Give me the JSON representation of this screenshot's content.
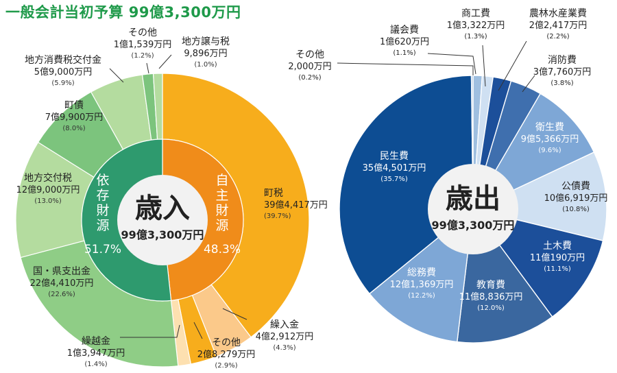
{
  "title": "一般会計当初予算 99億3,300万円",
  "chart_data": [
    {
      "type": "pie",
      "title": "歳入",
      "total": "99億3,300万円",
      "inner_ring": [
        {
          "name": "依存財源",
          "pct": "51.7%",
          "value": 51.7,
          "color": "#2e9a6e"
        },
        {
          "name": "自主財源",
          "pct": "48.3%",
          "value": 48.3,
          "color": "#f08c1a"
        }
      ],
      "slices": [
        {
          "name": "町税",
          "amount": "39億4,417万円",
          "pct": "(39.7%)",
          "value": 39.7,
          "color": "#f7ad1c"
        },
        {
          "name": "繰入金",
          "amount": "4億2,912万円",
          "pct": "(4.3%)",
          "value": 4.3,
          "color": "#fbc98a"
        },
        {
          "name": "その他",
          "amount": "2億8,279万円",
          "pct": "(2.9%)",
          "value": 2.9,
          "color": "#f7ad1c"
        },
        {
          "name": "繰越金",
          "amount": "1億3,947万円",
          "pct": "(1.4%)",
          "value": 1.4,
          "color": "#fde0b0"
        },
        {
          "name": "国・県支出金",
          "amount": "22億4,410万円",
          "pct": "(22.6%)",
          "value": 22.6,
          "color": "#8fcd86"
        },
        {
          "name": "地方交付税",
          "amount": "12億9,000万円",
          "pct": "(13.0%)",
          "value": 13.0,
          "color": "#b4dc9f"
        },
        {
          "name": "町債",
          "amount": "7億9,900万円",
          "pct": "(8.0%)",
          "value": 8.0,
          "color": "#7cc47d"
        },
        {
          "name": "地方消費税交付金",
          "amount": "5億9,000万円",
          "pct": "(5.9%)",
          "value": 5.9,
          "color": "#b4dc9f"
        },
        {
          "name": "その他",
          "amount": "1億1,539万円",
          "pct": "(1.2%)",
          "value": 1.2,
          "color": "#7cc47d"
        },
        {
          "name": "地方譲与税",
          "amount": "9,896万円",
          "pct": "(1.0%)",
          "value": 1.0,
          "color": "#b4dc9f"
        }
      ]
    },
    {
      "type": "pie",
      "title": "歳出",
      "total": "99億3,300万円",
      "slices": [
        {
          "name": "議会費",
          "amount": "1億620万円",
          "pct": "(1.1%)",
          "value": 1.1,
          "color": "#9fbfe0"
        },
        {
          "name": "商工費",
          "amount": "1億3,322万円",
          "pct": "(1.3%)",
          "value": 1.3,
          "color": "#cfe0f2"
        },
        {
          "name": "農林水産業費",
          "amount": "2億2,417万円",
          "pct": "(2.2%)",
          "value": 2.2,
          "color": "#1c4f9a"
        },
        {
          "name": "消防費",
          "amount": "3億7,760万円",
          "pct": "(3.8%)",
          "value": 3.8,
          "color": "#3f6fae"
        },
        {
          "name": "衛生費",
          "amount": "9億5,366万円",
          "pct": "(9.6%)",
          "value": 9.6,
          "color": "#7ea7d6"
        },
        {
          "name": "公債費",
          "amount": "10億6,919万円",
          "pct": "(10.8%)",
          "value": 10.8,
          "color": "#cfe0f2"
        },
        {
          "name": "土木費",
          "amount": "11億190万円",
          "pct": "(11.1%)",
          "value": 11.1,
          "color": "#1c4f9a"
        },
        {
          "name": "教育費",
          "amount": "11億8,836万円",
          "pct": "(12.0%)",
          "value": 12.0,
          "color": "#3a679f"
        },
        {
          "name": "総務費",
          "amount": "12億1,369万円",
          "pct": "(12.2%)",
          "value": 12.2,
          "color": "#7ea7d6"
        },
        {
          "name": "民生費",
          "amount": "35億4,501万円",
          "pct": "(35.7%)",
          "value": 35.7,
          "color": "#0d4d93"
        },
        {
          "name": "その他",
          "amount": "2,000万円",
          "pct": "(0.2%)",
          "value": 0.2,
          "color": "#9fbfe0"
        }
      ]
    }
  ]
}
